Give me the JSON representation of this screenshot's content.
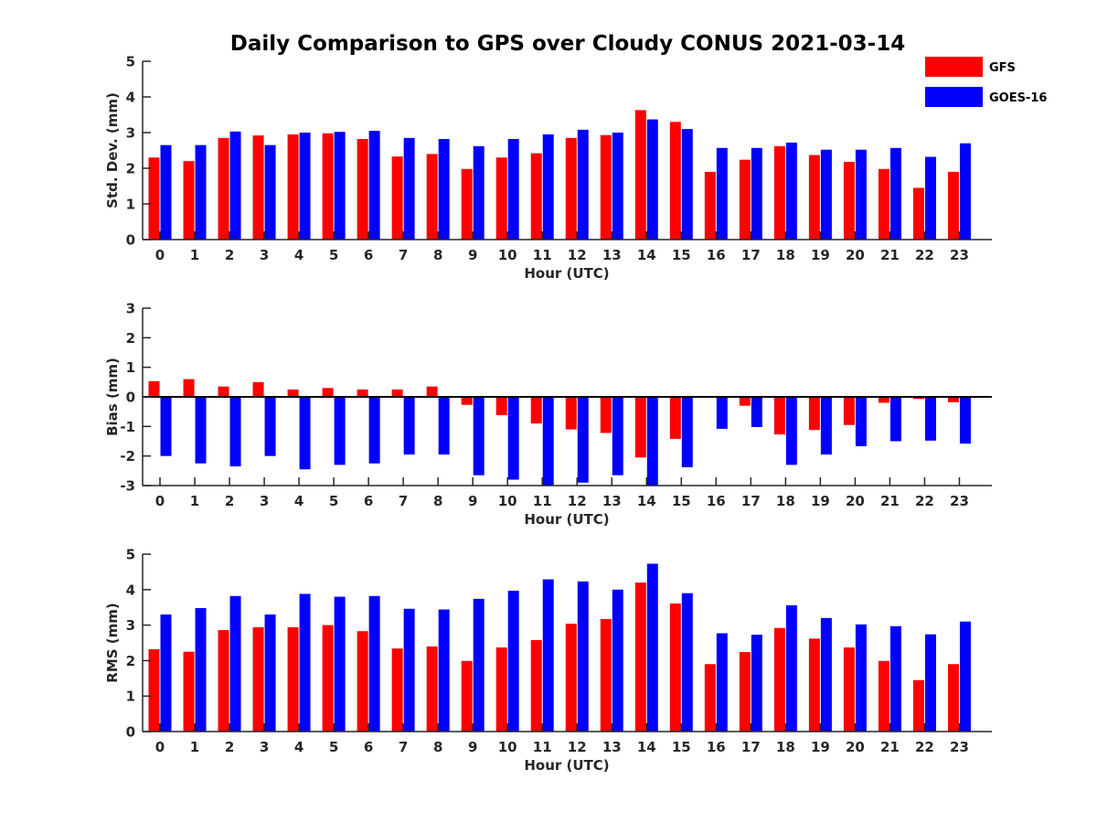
{
  "colors": {
    "GFS": "#ff0000",
    "GOES-16": "#0000ff",
    "axis": "#262626"
  },
  "chart_data": [
    {
      "type": "bar",
      "title": "Daily Comparison to GPS over Cloudy CONUS 2021-03-14",
      "xlabel": "Hour (UTC)",
      "ylabel": "Std. Dev. (mm)",
      "ylim": [
        0,
        5
      ],
      "yticks": [
        0,
        1,
        2,
        3,
        4,
        5
      ],
      "categories": [
        "0",
        "1",
        "2",
        "3",
        "4",
        "5",
        "6",
        "7",
        "8",
        "9",
        "10",
        "11",
        "12",
        "13",
        "14",
        "15",
        "16",
        "17",
        "18",
        "19",
        "20",
        "21",
        "22",
        "23"
      ],
      "series": [
        {
          "name": "GFS",
          "values": [
            2.3,
            2.2,
            2.85,
            2.92,
            2.95,
            2.98,
            2.82,
            2.33,
            2.4,
            1.98,
            2.3,
            2.42,
            2.85,
            2.93,
            3.63,
            3.3,
            1.9,
            2.24,
            2.62,
            2.37,
            2.18,
            1.98,
            1.45,
            1.9
          ]
        },
        {
          "name": "GOES-16",
          "values": [
            2.65,
            2.65,
            3.03,
            2.65,
            3.0,
            3.02,
            3.05,
            2.85,
            2.82,
            2.62,
            2.82,
            2.95,
            3.08,
            3.0,
            3.37,
            3.1,
            2.57,
            2.57,
            2.72,
            2.52,
            2.52,
            2.57,
            2.32,
            2.7
          ]
        }
      ],
      "legend": {
        "position": "top-right",
        "entries": [
          "GFS",
          "GOES-16"
        ]
      },
      "grid": false
    },
    {
      "type": "bar",
      "xlabel": "Hour (UTC)",
      "ylabel": "Bias (mm)",
      "ylim": [
        -3,
        3
      ],
      "yticks": [
        -3,
        -2,
        -1,
        0,
        1,
        2,
        3
      ],
      "categories": [
        "0",
        "1",
        "2",
        "3",
        "4",
        "5",
        "6",
        "7",
        "8",
        "9",
        "10",
        "11",
        "12",
        "13",
        "14",
        "15",
        "16",
        "17",
        "18",
        "19",
        "20",
        "21",
        "22",
        "23"
      ],
      "series": [
        {
          "name": "GFS",
          "values": [
            0.53,
            0.6,
            0.35,
            0.5,
            0.25,
            0.3,
            0.25,
            0.25,
            0.35,
            -0.27,
            -0.62,
            -0.9,
            -1.1,
            -1.22,
            -2.05,
            -1.42,
            0.03,
            -0.3,
            -1.27,
            -1.12,
            -0.95,
            -0.2,
            -0.07,
            -0.18
          ]
        },
        {
          "name": "GOES-16",
          "values": [
            -2.0,
            -2.25,
            -2.35,
            -2.0,
            -2.45,
            -2.3,
            -2.25,
            -1.95,
            -1.95,
            -2.65,
            -2.8,
            -3.0,
            -2.9,
            -2.65,
            -3.0,
            -2.38,
            -1.08,
            -1.02,
            -2.3,
            -1.95,
            -1.67,
            -1.5,
            -1.48,
            -1.58
          ]
        }
      ],
      "grid": false
    },
    {
      "type": "bar",
      "xlabel": "Hour (UTC)",
      "ylabel": "RMS (mm)",
      "ylim": [
        0,
        5
      ],
      "yticks": [
        0,
        1,
        2,
        3,
        4,
        5
      ],
      "categories": [
        "0",
        "1",
        "2",
        "3",
        "4",
        "5",
        "6",
        "7",
        "8",
        "9",
        "10",
        "11",
        "12",
        "13",
        "14",
        "15",
        "16",
        "17",
        "18",
        "19",
        "20",
        "21",
        "22",
        "23"
      ],
      "series": [
        {
          "name": "GFS",
          "values": [
            2.32,
            2.25,
            2.86,
            2.94,
            2.94,
            3.0,
            2.83,
            2.34,
            2.4,
            1.99,
            2.37,
            2.58,
            3.04,
            3.17,
            4.2,
            3.61,
            1.9,
            2.24,
            2.92,
            2.62,
            2.37,
            1.99,
            1.45,
            1.9
          ]
        },
        {
          "name": "GOES-16",
          "values": [
            3.3,
            3.48,
            3.82,
            3.3,
            3.88,
            3.8,
            3.82,
            3.46,
            3.44,
            3.74,
            3.97,
            4.29,
            4.23,
            4.0,
            4.73,
            3.9,
            2.77,
            2.73,
            3.56,
            3.2,
            3.02,
            2.97,
            2.74,
            3.1
          ]
        }
      ],
      "grid": false
    }
  ]
}
